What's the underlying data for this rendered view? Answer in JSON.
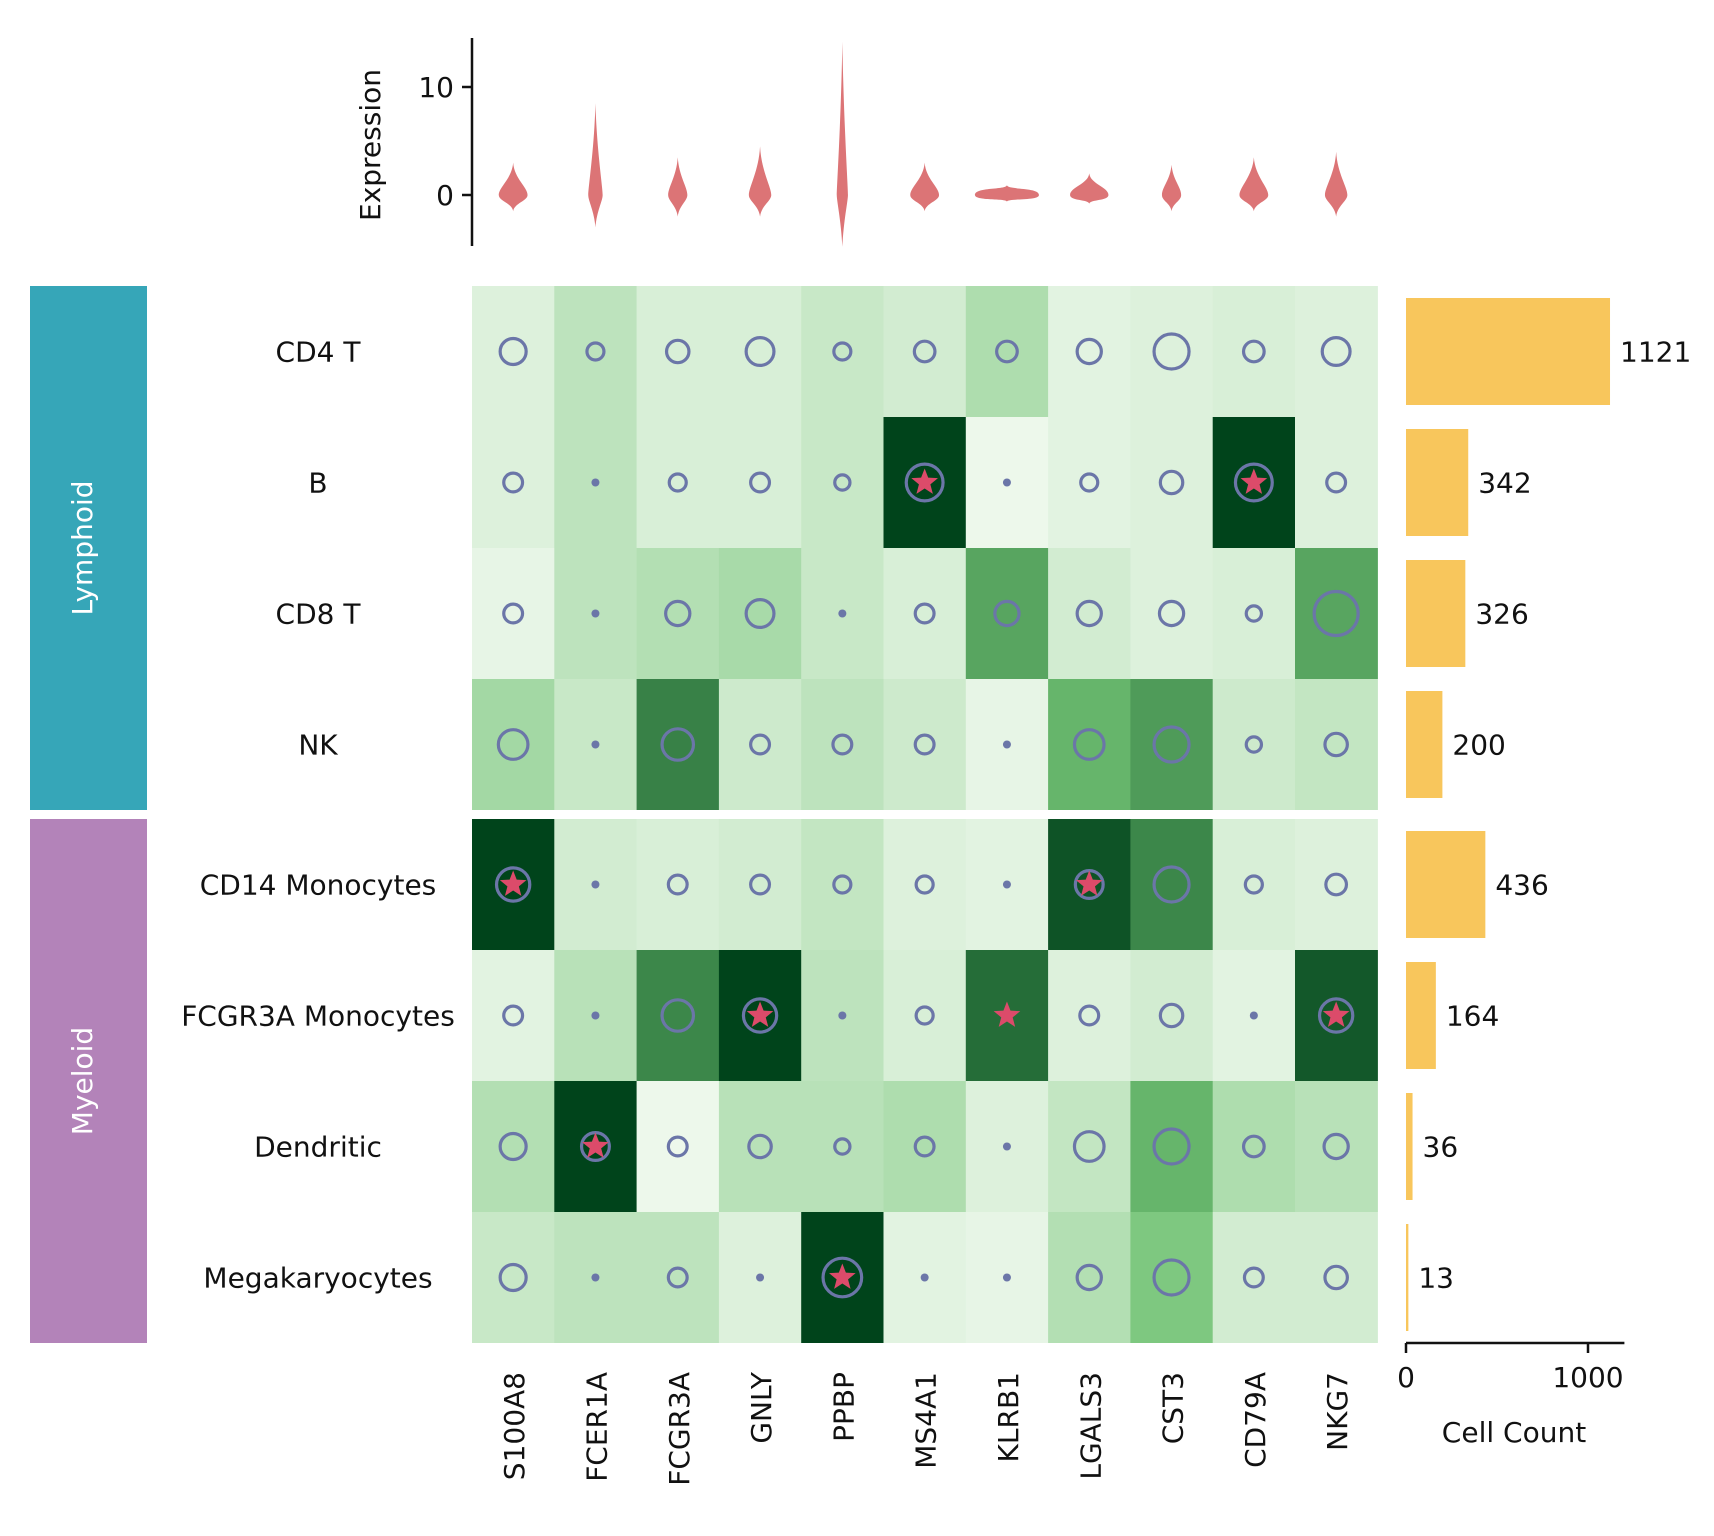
{
  "chart_data": {
    "type": "heatmap",
    "genes": [
      "S100A8",
      "FCER1A",
      "FCGR3A",
      "GNLY",
      "PPBP",
      "MS4A1",
      "KLRB1",
      "LGALS3",
      "CST3",
      "CD79A",
      "NKG7"
    ],
    "groups": [
      {
        "name": "Lymphoid",
        "color": "#36a6b8",
        "cell_types": [
          "CD4 T",
          "B",
          "CD8 T",
          "NK"
        ]
      },
      {
        "name": "Myeloid",
        "color": "#b383b9",
        "cell_types": [
          "CD14 Monocytes",
          "FCGR3A Monocytes",
          "Dendritic",
          "Megakaryocytes"
        ]
      }
    ],
    "cell_types": [
      "CD4 T",
      "B",
      "CD8 T",
      "NK",
      "CD14 Monocytes",
      "FCGR3A Monocytes",
      "Dendritic",
      "Megakaryocytes"
    ],
    "heat_values": [
      [
        0.1,
        0.22,
        0.12,
        0.12,
        0.18,
        0.14,
        0.28,
        0.08,
        0.1,
        0.12,
        0.1
      ],
      [
        0.1,
        0.22,
        0.12,
        0.12,
        0.18,
        1.0,
        0.04,
        0.08,
        0.1,
        1.0,
        0.1
      ],
      [
        0.06,
        0.22,
        0.26,
        0.3,
        0.18,
        0.12,
        0.62,
        0.14,
        0.1,
        0.12,
        0.62
      ],
      [
        0.32,
        0.18,
        0.76,
        0.16,
        0.22,
        0.16,
        0.06,
        0.56,
        0.66,
        0.16,
        0.2
      ],
      [
        1.0,
        0.14,
        0.12,
        0.14,
        0.2,
        0.1,
        0.08,
        0.94,
        0.74,
        0.12,
        0.1
      ],
      [
        0.08,
        0.24,
        0.74,
        1.0,
        0.22,
        0.12,
        0.84,
        0.1,
        0.14,
        0.08,
        0.92
      ],
      [
        0.26,
        1.0,
        0.04,
        0.24,
        0.24,
        0.28,
        0.1,
        0.2,
        0.56,
        0.28,
        0.24
      ],
      [
        0.18,
        0.22,
        0.22,
        0.1,
        1.0,
        0.08,
        0.06,
        0.26,
        0.46,
        0.14,
        0.14
      ]
    ],
    "circle_sizes": [
      [
        0.5,
        0.25,
        0.4,
        0.55,
        0.25,
        0.35,
        0.35,
        0.45,
        0.75,
        0.35,
        0.55
      ],
      [
        0.3,
        0.15,
        0.25,
        0.3,
        0.2,
        0.8,
        0.15,
        0.25,
        0.4,
        0.8,
        0.3
      ],
      [
        0.3,
        0.15,
        0.45,
        0.55,
        0.15,
        0.3,
        0.45,
        0.45,
        0.45,
        0.2,
        1.0
      ],
      [
        0.6,
        0.15,
        0.65,
        0.3,
        0.3,
        0.3,
        0.15,
        0.6,
        0.75,
        0.2,
        0.4
      ],
      [
        0.7,
        0.15,
        0.3,
        0.3,
        0.25,
        0.25,
        0.15,
        0.55,
        0.75,
        0.25,
        0.35
      ],
      [
        0.3,
        0.15,
        0.65,
        0.7,
        0.15,
        0.25,
        0.0,
        0.3,
        0.4,
        0.15,
        0.7
      ],
      [
        0.5,
        0.55,
        0.3,
        0.4,
        0.2,
        0.3,
        0.15,
        0.6,
        0.75,
        0.35,
        0.45
      ],
      [
        0.5,
        0.15,
        0.3,
        0.15,
        0.85,
        0.15,
        0.15,
        0.45,
        0.75,
        0.3,
        0.4
      ]
    ],
    "stars": [
      [
        1,
        5
      ],
      [
        1,
        9
      ],
      [
        4,
        0
      ],
      [
        4,
        7
      ],
      [
        5,
        3
      ],
      [
        5,
        6
      ],
      [
        5,
        10
      ],
      [
        6,
        1
      ],
      [
        7,
        4
      ]
    ],
    "violin": {
      "ylabel": "Expression",
      "ticks": [
        0,
        10
      ],
      "ylim": [
        -5,
        15
      ],
      "series": [
        {
          "gene": "S100A8",
          "min": -1.5,
          "max": 3.0,
          "center": 0,
          "width": 0.9
        },
        {
          "gene": "FCER1A",
          "min": -3.0,
          "max": 8.5,
          "center": 0,
          "width": 0.45
        },
        {
          "gene": "FCGR3A",
          "min": -2.0,
          "max": 3.5,
          "center": 0,
          "width": 0.6
        },
        {
          "gene": "GNLY",
          "min": -2.0,
          "max": 4.5,
          "center": 0,
          "width": 0.7
        },
        {
          "gene": "PPBP",
          "min": -4.8,
          "max": 14.2,
          "center": 0,
          "width": 0.35
        },
        {
          "gene": "MS4A1",
          "min": -1.5,
          "max": 3.0,
          "center": 0,
          "width": 0.9
        },
        {
          "gene": "KLRB1",
          "min": -0.6,
          "max": 0.9,
          "center": 0,
          "width": 2.0
        },
        {
          "gene": "LGALS3",
          "min": -0.8,
          "max": 2.0,
          "center": 0,
          "width": 1.2
        },
        {
          "gene": "CST3",
          "min": -1.5,
          "max": 2.8,
          "center": 0,
          "width": 0.6
        },
        {
          "gene": "CD79A",
          "min": -1.5,
          "max": 3.5,
          "center": 0,
          "width": 0.9
        },
        {
          "gene": "NKG7",
          "min": -2.0,
          "max": 4.0,
          "center": 0,
          "width": 0.7
        }
      ]
    },
    "cell_counts": {
      "values": [
        1121,
        342,
        326,
        200,
        436,
        164,
        36,
        13
      ],
      "xlabel": "Cell Count",
      "ticks": [
        0,
        1000
      ],
      "xlim": [
        0,
        1200
      ]
    },
    "colors": {
      "heat_low": "#f7fcf5",
      "heat_mid": "#74c476",
      "heat_high": "#00441b",
      "circle": "#6b76a8",
      "star": "#dc4b6a",
      "violin": "#dc7476",
      "bar": "#f8c65c"
    }
  }
}
